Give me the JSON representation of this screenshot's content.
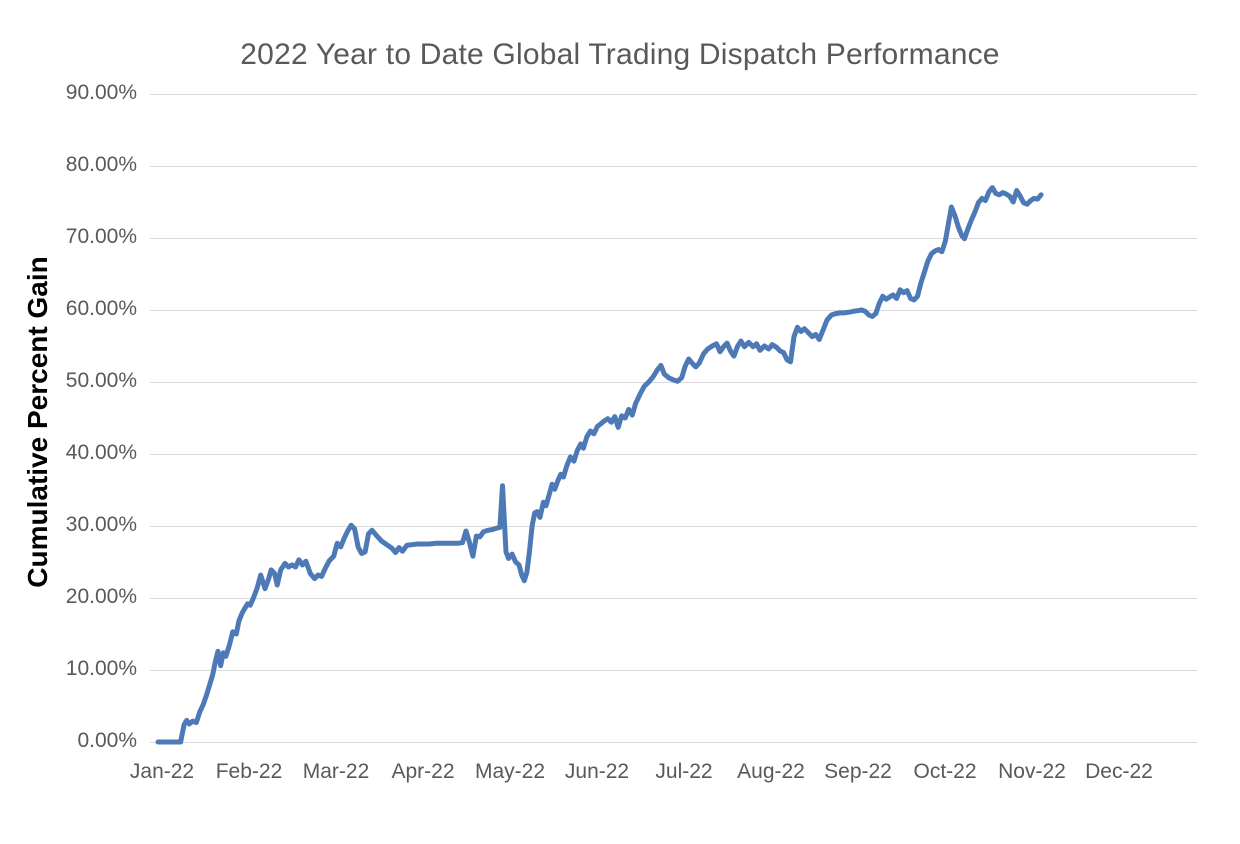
{
  "chart_data": {
    "type": "line",
    "title": "2022 Year to Date Global Trading Dispatch Performance",
    "ylabel": "Cumulative Percent Gain",
    "xlabel": "",
    "series_name": "Cumulative Percent Gain",
    "x_unit": "months since 2022-01-01 (fractional, 0 = Jan)",
    "x_tick_labels": [
      "Jan-22",
      "Feb-22",
      "Mar-22",
      "Apr-22",
      "May-22",
      "Jun-22",
      "Jul-22",
      "Aug-22",
      "Sep-22",
      "Oct-22",
      "Nov-22",
      "Dec-22"
    ],
    "y_tick_labels": [
      "0.00%",
      "10.00%",
      "20.00%",
      "30.00%",
      "40.00%",
      "50.00%",
      "60.00%",
      "70.00%",
      "80.00%",
      "90.00%"
    ],
    "ylim": [
      0,
      90
    ],
    "xlim_months": [
      0,
      12
    ],
    "y_tick_step": 10,
    "grid": true,
    "legend": false,
    "line_color": "#4E79B7",
    "line_width": 5,
    "grid_color": "#D9D9D9",
    "text_color": "#595959",
    "background": "#FFFFFF",
    "points": [
      [
        0.0,
        0.0
      ],
      [
        0.1,
        0.0
      ],
      [
        0.2,
        0.0
      ],
      [
        0.26,
        0.0
      ],
      [
        0.3,
        2.4
      ],
      [
        0.33,
        3.0
      ],
      [
        0.36,
        2.5
      ],
      [
        0.4,
        2.9
      ],
      [
        0.44,
        2.7
      ],
      [
        0.48,
        4.2
      ],
      [
        0.52,
        5.2
      ],
      [
        0.56,
        6.6
      ],
      [
        0.6,
        8.2
      ],
      [
        0.63,
        9.4
      ],
      [
        0.66,
        11.2
      ],
      [
        0.69,
        12.6
      ],
      [
        0.72,
        10.6
      ],
      [
        0.75,
        12.4
      ],
      [
        0.78,
        11.9
      ],
      [
        0.82,
        13.4
      ],
      [
        0.86,
        15.3
      ],
      [
        0.9,
        15.0
      ],
      [
        0.93,
        16.8
      ],
      [
        0.97,
        18.0
      ],
      [
        1.0,
        18.6
      ],
      [
        1.03,
        19.2
      ],
      [
        1.06,
        19.0
      ],
      [
        1.1,
        20.1
      ],
      [
        1.14,
        21.4
      ],
      [
        1.18,
        23.2
      ],
      [
        1.23,
        21.3
      ],
      [
        1.27,
        22.6
      ],
      [
        1.3,
        23.9
      ],
      [
        1.34,
        23.4
      ],
      [
        1.37,
        21.8
      ],
      [
        1.41,
        23.9
      ],
      [
        1.46,
        24.8
      ],
      [
        1.5,
        24.3
      ],
      [
        1.54,
        24.6
      ],
      [
        1.58,
        24.3
      ],
      [
        1.62,
        25.3
      ],
      [
        1.66,
        24.6
      ],
      [
        1.7,
        25.1
      ],
      [
        1.75,
        23.4
      ],
      [
        1.8,
        22.7
      ],
      [
        1.84,
        23.2
      ],
      [
        1.88,
        23.0
      ],
      [
        1.93,
        24.3
      ],
      [
        1.97,
        25.2
      ],
      [
        2.02,
        25.8
      ],
      [
        2.06,
        27.6
      ],
      [
        2.1,
        27.1
      ],
      [
        2.14,
        28.3
      ],
      [
        2.18,
        29.3
      ],
      [
        2.22,
        30.1
      ],
      [
        2.26,
        29.6
      ],
      [
        2.3,
        27.1
      ],
      [
        2.34,
        26.2
      ],
      [
        2.38,
        26.4
      ],
      [
        2.42,
        28.9
      ],
      [
        2.46,
        29.4
      ],
      [
        2.51,
        28.7
      ],
      [
        2.57,
        27.9
      ],
      [
        2.63,
        27.4
      ],
      [
        2.69,
        26.9
      ],
      [
        2.73,
        26.3
      ],
      [
        2.77,
        27.0
      ],
      [
        2.81,
        26.5
      ],
      [
        2.86,
        27.3
      ],
      [
        2.92,
        27.4
      ],
      [
        2.98,
        27.5
      ],
      [
        3.05,
        27.5
      ],
      [
        3.12,
        27.5
      ],
      [
        3.2,
        27.6
      ],
      [
        3.28,
        27.6
      ],
      [
        3.36,
        27.6
      ],
      [
        3.44,
        27.6
      ],
      [
        3.5,
        27.7
      ],
      [
        3.54,
        29.3
      ],
      [
        3.58,
        27.7
      ],
      [
        3.62,
        25.8
      ],
      [
        3.66,
        28.6
      ],
      [
        3.7,
        28.5
      ],
      [
        3.74,
        29.2
      ],
      [
        3.79,
        29.4
      ],
      [
        3.84,
        29.5
      ],
      [
        3.89,
        29.7
      ],
      [
        3.93,
        29.8
      ],
      [
        3.96,
        35.6
      ],
      [
        4.0,
        26.4
      ],
      [
        4.03,
        25.5
      ],
      [
        4.07,
        26.1
      ],
      [
        4.11,
        25.0
      ],
      [
        4.15,
        24.6
      ],
      [
        4.18,
        23.2
      ],
      [
        4.21,
        22.4
      ],
      [
        4.24,
        23.6
      ],
      [
        4.27,
        26.5
      ],
      [
        4.3,
        30.0
      ],
      [
        4.33,
        31.8
      ],
      [
        4.36,
        32.0
      ],
      [
        4.39,
        31.2
      ],
      [
        4.43,
        33.3
      ],
      [
        4.46,
        32.8
      ],
      [
        4.5,
        34.5
      ],
      [
        4.53,
        35.8
      ],
      [
        4.56,
        35.1
      ],
      [
        4.6,
        36.4
      ],
      [
        4.63,
        37.2
      ],
      [
        4.66,
        36.8
      ],
      [
        4.7,
        38.4
      ],
      [
        4.74,
        39.6
      ],
      [
        4.78,
        39.0
      ],
      [
        4.82,
        40.5
      ],
      [
        4.86,
        41.4
      ],
      [
        4.89,
        40.8
      ],
      [
        4.93,
        42.4
      ],
      [
        4.97,
        43.2
      ],
      [
        5.01,
        42.8
      ],
      [
        5.05,
        43.8
      ],
      [
        5.09,
        44.2
      ],
      [
        5.13,
        44.6
      ],
      [
        5.17,
        44.9
      ],
      [
        5.21,
        44.4
      ],
      [
        5.25,
        45.2
      ],
      [
        5.29,
        43.7
      ],
      [
        5.33,
        45.3
      ],
      [
        5.37,
        45.0
      ],
      [
        5.41,
        46.2
      ],
      [
        5.45,
        45.4
      ],
      [
        5.49,
        47.0
      ],
      [
        5.54,
        48.3
      ],
      [
        5.59,
        49.4
      ],
      [
        5.64,
        50.0
      ],
      [
        5.69,
        50.7
      ],
      [
        5.74,
        51.7
      ],
      [
        5.78,
        52.3
      ],
      [
        5.82,
        51.1
      ],
      [
        5.87,
        50.6
      ],
      [
        5.92,
        50.3
      ],
      [
        5.97,
        50.1
      ],
      [
        6.02,
        50.6
      ],
      [
        6.06,
        52.2
      ],
      [
        6.1,
        53.2
      ],
      [
        6.14,
        52.6
      ],
      [
        6.18,
        52.1
      ],
      [
        6.22,
        52.6
      ],
      [
        6.27,
        53.9
      ],
      [
        6.32,
        54.6
      ],
      [
        6.37,
        55.0
      ],
      [
        6.42,
        55.3
      ],
      [
        6.46,
        54.2
      ],
      [
        6.5,
        54.9
      ],
      [
        6.54,
        55.4
      ],
      [
        6.58,
        54.3
      ],
      [
        6.62,
        53.6
      ],
      [
        6.66,
        54.9
      ],
      [
        6.7,
        55.7
      ],
      [
        6.74,
        54.9
      ],
      [
        6.79,
        55.5
      ],
      [
        6.84,
        54.9
      ],
      [
        6.88,
        55.3
      ],
      [
        6.92,
        54.4
      ],
      [
        6.97,
        55.0
      ],
      [
        7.02,
        54.6
      ],
      [
        7.06,
        55.2
      ],
      [
        7.11,
        54.8
      ],
      [
        7.15,
        54.3
      ],
      [
        7.19,
        54.1
      ],
      [
        7.23,
        53.1
      ],
      [
        7.27,
        52.8
      ],
      [
        7.31,
        56.3
      ],
      [
        7.35,
        57.6
      ],
      [
        7.39,
        57.0
      ],
      [
        7.43,
        57.4
      ],
      [
        7.47,
        56.9
      ],
      [
        7.52,
        56.3
      ],
      [
        7.56,
        56.6
      ],
      [
        7.6,
        55.9
      ],
      [
        7.65,
        57.4
      ],
      [
        7.69,
        58.6
      ],
      [
        7.74,
        59.3
      ],
      [
        7.79,
        59.5
      ],
      [
        7.84,
        59.6
      ],
      [
        7.89,
        59.6
      ],
      [
        7.94,
        59.7
      ],
      [
        7.99,
        59.8
      ],
      [
        8.04,
        59.9
      ],
      [
        8.09,
        60.0
      ],
      [
        8.13,
        59.8
      ],
      [
        8.17,
        59.3
      ],
      [
        8.21,
        59.1
      ],
      [
        8.25,
        59.5
      ],
      [
        8.29,
        60.9
      ],
      [
        8.33,
        61.9
      ],
      [
        8.37,
        61.5
      ],
      [
        8.41,
        61.8
      ],
      [
        8.45,
        62.1
      ],
      [
        8.49,
        61.6
      ],
      [
        8.53,
        62.8
      ],
      [
        8.57,
        62.4
      ],
      [
        8.61,
        62.7
      ],
      [
        8.65,
        61.6
      ],
      [
        8.69,
        61.4
      ],
      [
        8.73,
        61.9
      ],
      [
        8.77,
        63.8
      ],
      [
        8.81,
        65.3
      ],
      [
        8.85,
        66.8
      ],
      [
        8.89,
        67.8
      ],
      [
        8.93,
        68.2
      ],
      [
        8.97,
        68.4
      ],
      [
        9.01,
        68.1
      ],
      [
        9.05,
        69.6
      ],
      [
        9.09,
        72.3
      ],
      [
        9.12,
        74.3
      ],
      [
        9.16,
        73.1
      ],
      [
        9.2,
        71.5
      ],
      [
        9.24,
        70.3
      ],
      [
        9.27,
        69.9
      ],
      [
        9.31,
        71.3
      ],
      [
        9.35,
        72.5
      ],
      [
        9.39,
        73.6
      ],
      [
        9.43,
        74.9
      ],
      [
        9.47,
        75.5
      ],
      [
        9.51,
        75.2
      ],
      [
        9.55,
        76.4
      ],
      [
        9.59,
        77.0
      ],
      [
        9.63,
        76.2
      ],
      [
        9.67,
        76.0
      ],
      [
        9.71,
        76.3
      ],
      [
        9.75,
        76.1
      ],
      [
        9.79,
        75.8
      ],
      [
        9.83,
        75.0
      ],
      [
        9.87,
        76.6
      ],
      [
        9.91,
        75.8
      ],
      [
        9.95,
        74.9
      ],
      [
        9.99,
        74.7
      ],
      [
        10.03,
        75.2
      ],
      [
        10.07,
        75.5
      ],
      [
        10.11,
        75.4
      ],
      [
        10.15,
        76.0
      ]
    ]
  }
}
